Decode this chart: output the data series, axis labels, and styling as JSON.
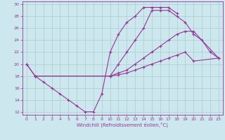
{
  "xlabel": "Windchill (Refroidissement éolien,°C)",
  "bg_color": "#cce8ee",
  "line_color": "#993399",
  "grid_color": "#aacccc",
  "xlim": [
    -0.5,
    23.5
  ],
  "ylim": [
    11.5,
    30.5
  ],
  "xticks": [
    0,
    1,
    2,
    3,
    4,
    5,
    6,
    7,
    8,
    9,
    10,
    11,
    12,
    13,
    14,
    15,
    16,
    17,
    18,
    19,
    20,
    21,
    22,
    23
  ],
  "yticks": [
    12,
    14,
    16,
    18,
    20,
    22,
    24,
    26,
    28,
    30
  ],
  "s1_x": [
    0,
    1,
    2,
    3,
    4,
    5,
    6,
    7,
    8,
    9,
    10,
    11,
    12,
    13,
    14,
    15,
    16,
    17,
    18
  ],
  "s1_y": [
    20,
    18,
    17,
    16,
    15,
    14,
    13,
    12,
    12,
    15,
    22,
    25,
    27,
    28,
    29.5,
    29.5,
    29.5,
    29.5,
    28.5
  ],
  "s2_x": [
    0,
    1,
    10,
    11,
    12,
    13,
    14,
    15,
    16,
    17,
    18,
    19,
    20,
    21,
    22,
    23
  ],
  "s2_y": [
    20,
    18,
    18,
    20,
    22,
    24,
    26,
    29,
    29,
    29,
    28,
    27,
    25,
    24,
    22,
    21
  ],
  "s3_x": [
    1,
    10,
    11,
    12,
    13,
    14,
    15,
    16,
    17,
    18,
    19,
    20,
    23
  ],
  "s3_y": [
    18,
    18,
    18.5,
    19,
    20,
    21,
    22,
    23,
    24,
    25,
    25.5,
    25.5,
    21
  ],
  "s4_x": [
    1,
    10,
    11,
    12,
    13,
    14,
    15,
    16,
    17,
    18,
    19,
    20,
    23
  ],
  "s4_y": [
    18,
    18,
    18.2,
    18.5,
    19,
    19.5,
    20,
    20.5,
    21,
    21.5,
    22,
    20.5,
    21
  ]
}
